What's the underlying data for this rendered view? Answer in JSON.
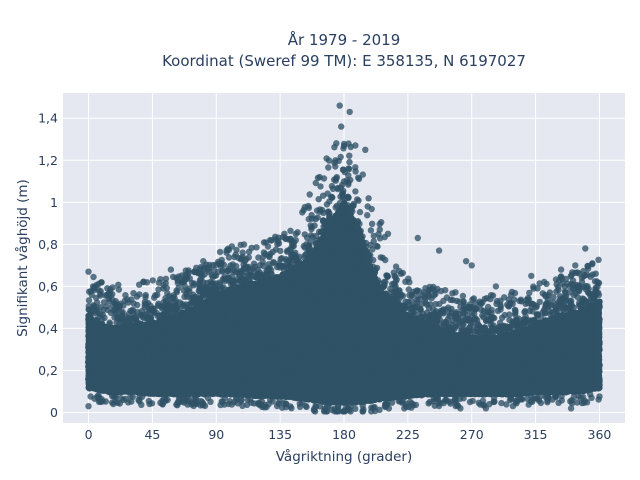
{
  "chart_data": {
    "type": "scatter",
    "title_line1": "År 1979 - 2019",
    "title_line2": "Koordinat (Sweref 99 TM): E 358135, N 6197027",
    "xlabel": "Vågriktning (grader)",
    "ylabel": "Signifikant våghöjd (m)",
    "xlim": [
      -18,
      378
    ],
    "ylim": [
      -0.05,
      1.52
    ],
    "xticks": [
      0,
      45,
      90,
      135,
      180,
      225,
      270,
      315,
      360
    ],
    "xtick_labels": [
      "0",
      "45",
      "90",
      "135",
      "180",
      "225",
      "270",
      "315",
      "360"
    ],
    "yticks": [
      0,
      0.2,
      0.4,
      0.6,
      0.8,
      1.0,
      1.2,
      1.4
    ],
    "ytick_labels": [
      "0",
      "0,2",
      "0,4",
      "0,6",
      "0,8",
      "1",
      "1,2",
      "1,4"
    ],
    "grid": true,
    "marker_color": "#2f5266",
    "plot_bg": "#e5e8f0",
    "envelope": {
      "direction_deg": [
        0,
        15,
        30,
        45,
        60,
        75,
        90,
        105,
        120,
        135,
        150,
        160,
        170,
        180,
        190,
        200,
        210,
        225,
        240,
        255,
        270,
        285,
        300,
        315,
        330,
        345,
        360
      ],
      "dense_upper_m": [
        0.48,
        0.42,
        0.44,
        0.45,
        0.48,
        0.52,
        0.58,
        0.62,
        0.64,
        0.67,
        0.72,
        0.8,
        0.92,
        1.02,
        0.9,
        0.68,
        0.55,
        0.48,
        0.44,
        0.4,
        0.38,
        0.38,
        0.4,
        0.44,
        0.48,
        0.5,
        0.55
      ],
      "dense_lower_m": [
        0.1,
        0.08,
        0.08,
        0.07,
        0.07,
        0.07,
        0.07,
        0.07,
        0.06,
        0.06,
        0.05,
        0.04,
        0.03,
        0.03,
        0.03,
        0.04,
        0.05,
        0.06,
        0.07,
        0.07,
        0.07,
        0.07,
        0.07,
        0.08,
        0.08,
        0.08,
        0.1
      ]
    },
    "notable_points": [
      {
        "x": 177,
        "y": 1.46
      },
      {
        "x": 184,
        "y": 1.43
      },
      {
        "x": 178,
        "y": 1.36
      },
      {
        "x": 188,
        "y": 1.27
      },
      {
        "x": 195,
        "y": 1.25
      },
      {
        "x": 174,
        "y": 1.2
      },
      {
        "x": 0,
        "y": 0.67
      },
      {
        "x": 58,
        "y": 0.68
      },
      {
        "x": 84,
        "y": 0.68
      },
      {
        "x": 101,
        "y": 0.79
      },
      {
        "x": 128,
        "y": 0.82
      },
      {
        "x": 138,
        "y": 0.85
      },
      {
        "x": 211,
        "y": 0.85
      },
      {
        "x": 232,
        "y": 0.83
      },
      {
        "x": 247,
        "y": 0.77
      },
      {
        "x": 266,
        "y": 0.72
      },
      {
        "x": 270,
        "y": 0.7
      },
      {
        "x": 287,
        "y": 0.6
      },
      {
        "x": 312,
        "y": 0.65
      },
      {
        "x": 333,
        "y": 0.68
      },
      {
        "x": 343,
        "y": 0.7
      },
      {
        "x": 350,
        "y": 0.78
      },
      {
        "x": 355,
        "y": 0.71
      },
      {
        "x": 226,
        "y": 0.62
      },
      {
        "x": 262,
        "y": 0.02
      },
      {
        "x": 280,
        "y": 0.02
      },
      {
        "x": 0,
        "y": 0.03
      },
      {
        "x": 183,
        "y": 0.02
      },
      {
        "x": 160,
        "y": 0.03
      },
      {
        "x": 340,
        "y": 0.02
      }
    ]
  }
}
